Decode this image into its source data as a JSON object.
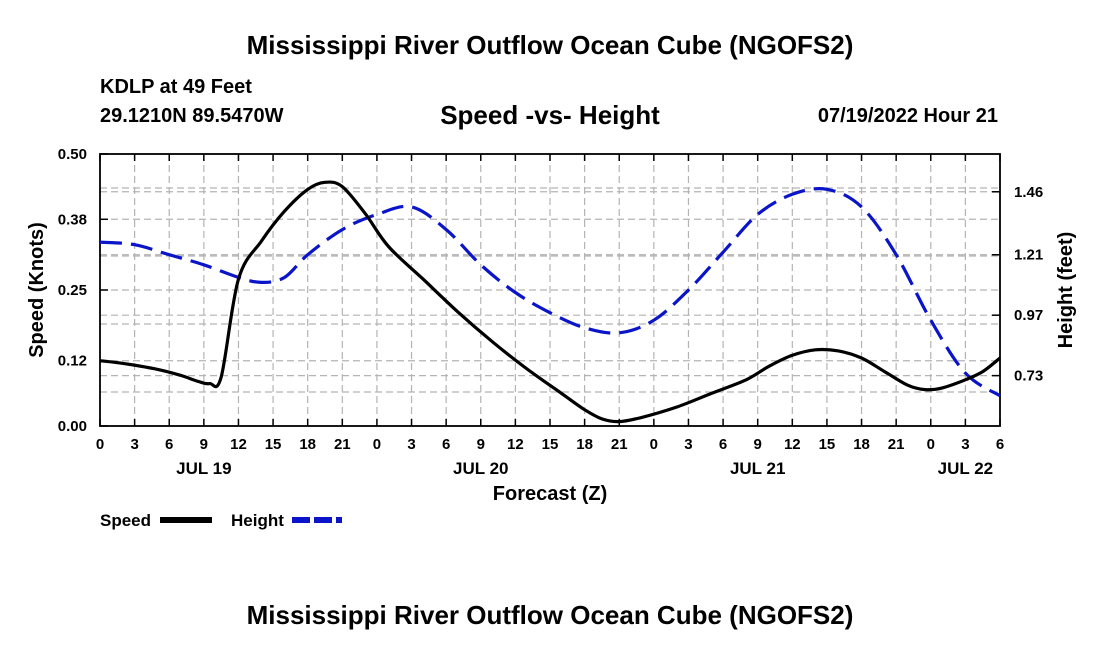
{
  "header": {
    "title": "Mississippi River Outflow Ocean Cube (NGOFS2)",
    "station": "KDLP at 49 Feet",
    "coords": "29.1210N  89.5470W",
    "subtitle": "Speed -vs- Height",
    "date": "07/19/2022 Hour 21"
  },
  "footer": {
    "title": "Mississippi River Outflow Ocean Cube (NGOFS2)"
  },
  "chart_data": {
    "type": "line",
    "title": "Speed -vs- Height",
    "xlabel": "Forecast (Z)",
    "ylabel": "Speed (Knots)",
    "y2label": "Height (feet)",
    "xlim": [
      0,
      78
    ],
    "ylim": [
      0,
      0.5
    ],
    "y2lim": [
      0.53,
      1.61
    ],
    "x_tick_labels": [
      "0",
      "3",
      "6",
      "9",
      "12",
      "15",
      "18",
      "21",
      "0",
      "3",
      "6",
      "9",
      "12",
      "15",
      "18",
      "21",
      "0",
      "3",
      "6",
      "9",
      "12",
      "15",
      "18",
      "21",
      "0",
      "3",
      "6"
    ],
    "day_labels": [
      {
        "x": 9,
        "label": "JUL 19"
      },
      {
        "x": 33,
        "label": "JUL 20"
      },
      {
        "x": 57,
        "label": "JUL 21"
      },
      {
        "x": 75,
        "label": "JUL 22"
      }
    ],
    "y_ticks": [
      "0.00",
      "0.12",
      "0.25",
      "0.38",
      "0.50"
    ],
    "y2_ticks": [
      "0.73",
      "0.97",
      "1.21",
      "1.46"
    ],
    "grid": true,
    "legend": [
      {
        "label": "Speed",
        "color": "#000000",
        "style": "solid"
      },
      {
        "label": "Height",
        "color": "#0a14c8",
        "style": "dashed"
      }
    ],
    "series": [
      {
        "name": "Speed",
        "axis": "left",
        "color": "#000000",
        "x": [
          0,
          2,
          5,
          7,
          8.5,
          9.5,
          10.5,
          12,
          14,
          16,
          18,
          19.5,
          21,
          23,
          25,
          28,
          31,
          34,
          37,
          40,
          42,
          43.5,
          45,
          47,
          50,
          53,
          56,
          58,
          60,
          62,
          64,
          66,
          68,
          70,
          71.5,
          73,
          75,
          76.5,
          78
        ],
        "values": [
          0.12,
          0.115,
          0.104,
          0.093,
          0.082,
          0.078,
          0.09,
          0.27,
          0.34,
          0.395,
          0.435,
          0.448,
          0.44,
          0.39,
          0.33,
          0.27,
          0.21,
          0.155,
          0.105,
          0.06,
          0.03,
          0.013,
          0.008,
          0.016,
          0.035,
          0.06,
          0.085,
          0.11,
          0.13,
          0.14,
          0.138,
          0.125,
          0.1,
          0.075,
          0.067,
          0.07,
          0.085,
          0.1,
          0.125
        ]
      },
      {
        "name": "Height",
        "axis": "right",
        "color": "#0a14c8",
        "x": [
          0,
          3,
          6,
          9,
          12,
          14,
          16,
          18,
          21,
          24,
          27,
          30,
          33,
          36,
          39,
          42,
          45,
          48,
          51,
          54,
          57,
          60,
          63,
          66,
          69,
          72,
          75,
          78
        ],
        "values": [
          1.26,
          1.25,
          1.21,
          1.17,
          1.12,
          1.1,
          1.12,
          1.21,
          1.31,
          1.37,
          1.4,
          1.31,
          1.17,
          1.06,
          0.98,
          0.92,
          0.9,
          0.95,
          1.07,
          1.22,
          1.37,
          1.45,
          1.47,
          1.4,
          1.21,
          0.95,
          0.74,
          0.65
        ]
      }
    ]
  }
}
